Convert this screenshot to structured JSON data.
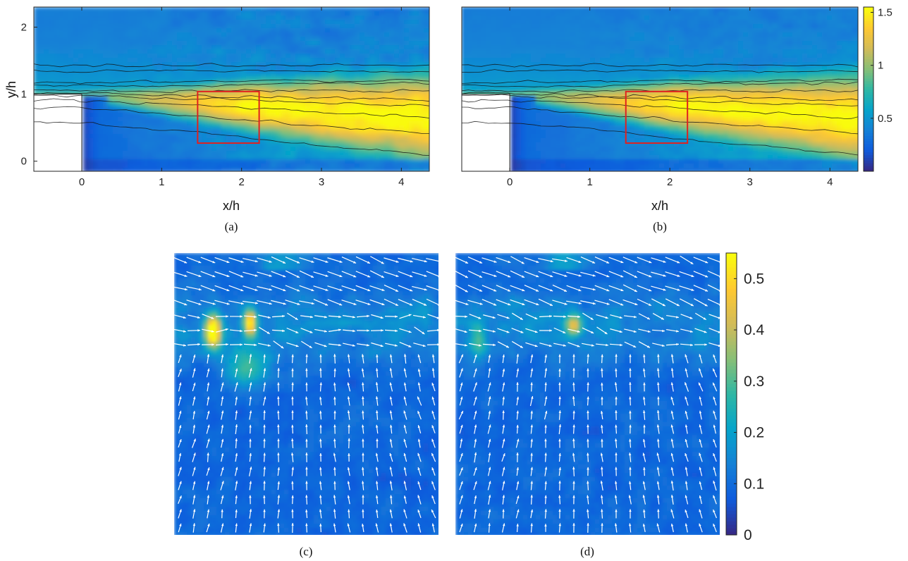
{
  "chart_data": [
    {
      "panel": "a",
      "type": "heatmap",
      "panel_label": "(a)",
      "xlabel": "x/h",
      "ylabel": "y/h",
      "xlim": [
        -0.6,
        4.35
      ],
      "ylim": [
        -0.15,
        2.3
      ],
      "xticks": [
        0,
        1,
        2,
        3,
        4
      ],
      "yticks": [
        0,
        1,
        2
      ],
      "step": {
        "x0": -0.6,
        "x1": 0,
        "y0": -0.15,
        "y1": 1.0
      },
      "roi": {
        "x": [
          1.45,
          2.22
        ],
        "y": [
          0.27,
          1.04
        ],
        "color": "#e0211f"
      },
      "colorbar": null
    },
    {
      "panel": "b",
      "type": "heatmap",
      "panel_label": "(b)",
      "xlabel": "x/h",
      "ylabel": "",
      "xlim": [
        -0.6,
        4.35
      ],
      "ylim": [
        -0.15,
        2.3
      ],
      "xticks": [
        0,
        1,
        2,
        3,
        4
      ],
      "yticks": [],
      "step": {
        "x0": -0.6,
        "x1": 0,
        "y0": -0.15,
        "y1": 1.0
      },
      "roi": {
        "x": [
          1.45,
          2.22
        ],
        "y": [
          0.27,
          1.04
        ],
        "color": "#e0211f"
      },
      "colorbar": {
        "ticks": [
          0.5,
          1,
          1.5
        ],
        "range": [
          0,
          1.55
        ]
      }
    },
    {
      "panel": "c",
      "type": "heatmap",
      "panel_label": "(c)",
      "xlabel": "",
      "ylabel": "",
      "field": "vector overlay on scalar map",
      "colorbar": null
    },
    {
      "panel": "d",
      "type": "heatmap",
      "panel_label": "(d)",
      "xlabel": "",
      "ylabel": "",
      "field": "vector overlay on scalar map",
      "colorbar": {
        "ticks": [
          0,
          0.1,
          0.2,
          0.3,
          0.4,
          0.5
        ],
        "range": [
          0,
          0.55
        ]
      }
    }
  ],
  "colors": {
    "parula": [
      "#352a87",
      "#0f5cdd",
      "#1481d6",
      "#06a4ca",
      "#2eb7a4",
      "#87bf77",
      "#d1bb59",
      "#fec832",
      "#f9fb0e"
    ],
    "roi": "#e0211f",
    "arrow": "#ffffff"
  }
}
